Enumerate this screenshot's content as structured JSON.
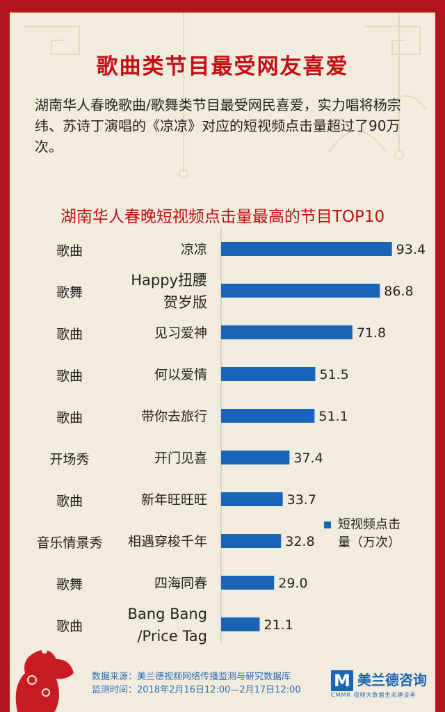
{
  "header": {
    "title": "歌曲类节目最受网友喜爱",
    "intro": "湖南华人春晚歌曲/歌舞类节目最受网民喜爱，实力唱将杨宗纬、苏诗丁演唱的《凉凉》对应的短视频点击量超过了90万次。"
  },
  "legend": {
    "label": "短视频点击量（万次）"
  },
  "footer": {
    "source": "数据来源：美兰德视频网络传播监测与研究数据库",
    "time": "监测时间：2018年2月16日12:00—2月17日12:00"
  },
  "logo": {
    "mark": "M",
    "name": "美兰德咨询",
    "sub": "CMMR 视频大数据生态建设者"
  },
  "colors": {
    "bar": "#1a64b8",
    "accent": "#c40d12",
    "frame": "#b3151c"
  },
  "chart_data": {
    "type": "bar",
    "orientation": "horizontal",
    "title": "湖南华人春晚短视频点击量最高的节目TOP10",
    "series": [
      {
        "name": "短视频点击量（万次）"
      }
    ],
    "categories": [
      {
        "type": "歌曲",
        "name": [
          "凉凉"
        ],
        "value": 93.4,
        "value_label": "93.4"
      },
      {
        "type": "歌舞",
        "name": [
          "Happy扭腰",
          "贺岁版"
        ],
        "value": 86.8,
        "value_label": "86.8"
      },
      {
        "type": "歌曲",
        "name": [
          "见习爱神"
        ],
        "value": 71.8,
        "value_label": "71.8"
      },
      {
        "type": "歌曲",
        "name": [
          "何以爱情"
        ],
        "value": 51.5,
        "value_label": "51.5"
      },
      {
        "type": "歌曲",
        "name": [
          "带你去旅行"
        ],
        "value": 51.1,
        "value_label": "51.1"
      },
      {
        "type": "开场秀",
        "name": [
          "开门见喜"
        ],
        "value": 37.4,
        "value_label": "37.4"
      },
      {
        "type": "歌曲",
        "name": [
          "新年旺旺旺"
        ],
        "value": 33.7,
        "value_label": "33.7"
      },
      {
        "type": "音乐情景秀",
        "name": [
          "相遇穿梭千年"
        ],
        "value": 32.8,
        "value_label": "32.8"
      },
      {
        "type": "歌舞",
        "name": [
          "四海同春"
        ],
        "value": 29.0,
        "value_label": "29.0"
      },
      {
        "type": "歌曲",
        "name": [
          "Bang Bang",
          "/Price Tag"
        ],
        "value": 21.1,
        "value_label": "21.1"
      }
    ],
    "xlim": [
      0,
      100
    ],
    "grid": false,
    "legend_position": "right"
  }
}
